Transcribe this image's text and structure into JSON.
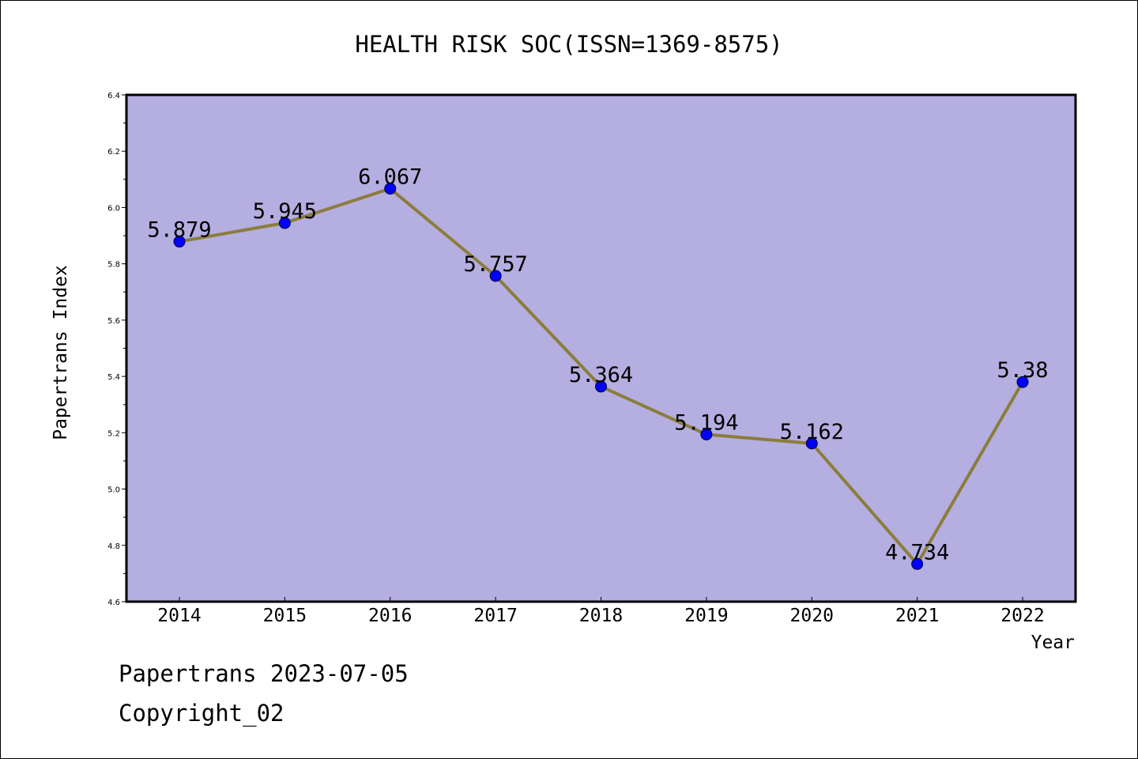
{
  "chart_data": {
    "type": "line",
    "title": "HEALTH RISK SOC(ISSN=1369-8575)",
    "xlabel": "Year",
    "ylabel": "Papertrans Index",
    "categories": [
      "2014",
      "2015",
      "2016",
      "2017",
      "2018",
      "2019",
      "2020",
      "2021",
      "2022"
    ],
    "series": [
      {
        "values": [
          5.879,
          5.945,
          6.067,
          5.757,
          5.364,
          5.194,
          5.162,
          4.734,
          5.38
        ],
        "labels": [
          "5.879",
          "5.945",
          "6.067",
          "5.757",
          "5.364",
          "5.194",
          "5.162",
          "4.734",
          "5.38"
        ]
      }
    ],
    "ylim": [
      4.6,
      6.4
    ],
    "yticks": [
      "4.6",
      "4.8",
      "5.0",
      "5.2",
      "5.4",
      "5.6",
      "5.8",
      "6.0",
      "6.2",
      "6.4"
    ],
    "grid": false,
    "colors": {
      "plot_background": "#b5aee1",
      "line": "#8b7d3a",
      "marker": "#0000ff"
    }
  },
  "footer": {
    "line1": "Papertrans 2023-07-05",
    "line2": "Copyright_02"
  }
}
